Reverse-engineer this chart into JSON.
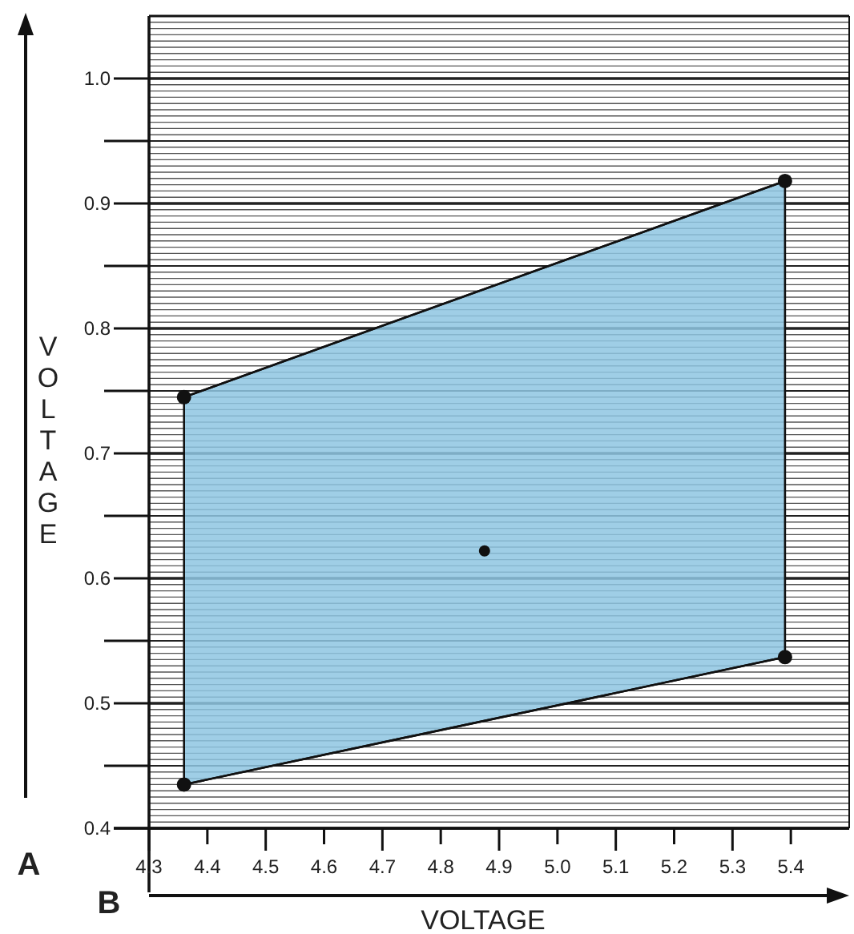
{
  "chart_data": {
    "type": "line",
    "xlabel": "VOLTAGE",
    "ylabel": "VOLTAGE",
    "annotations": [
      "A",
      "B"
    ],
    "xlim": [
      4.3,
      5.5
    ],
    "xticks": [
      4.3,
      4.4,
      4.5,
      4.6,
      4.7,
      4.8,
      4.9,
      {
        "value": 5.0,
        "label": "5.0"
      },
      5.1,
      5.2,
      5.3,
      5.4
    ],
    "ylim": [
      0.4,
      1.05
    ],
    "yticks": [
      0.4,
      {
        "value": 0.45,
        "label": null
      },
      0.5,
      {
        "value": 0.55,
        "label": null
      },
      0.6,
      {
        "value": 0.65,
        "label": null
      },
      0.7,
      {
        "value": 0.75,
        "label": null
      },
      0.8,
      {
        "value": 0.85,
        "label": null
      },
      0.9,
      {
        "value": 0.95,
        "label": null
      },
      {
        "value": 1.0,
        "label": "1.0"
      }
    ],
    "grid": "y",
    "marker": "circle",
    "line_style": "solid",
    "series": [
      {
        "color": "#111111",
        "x": [
          4.36,
          5.39
        ],
        "values": [
          0.745,
          0.918
        ],
        "lower": [
          0.435,
          0.537
        ],
        "upper": [
          0.745,
          0.918
        ]
      },
      {
        "color": "#111111",
        "x": [
          4.36,
          5.39
        ],
        "values": [
          0.435,
          0.537
        ]
      },
      {
        "type": "scatter",
        "color": "#111111",
        "x": [
          4.875
        ],
        "values": [
          0.622
        ]
      }
    ]
  }
}
